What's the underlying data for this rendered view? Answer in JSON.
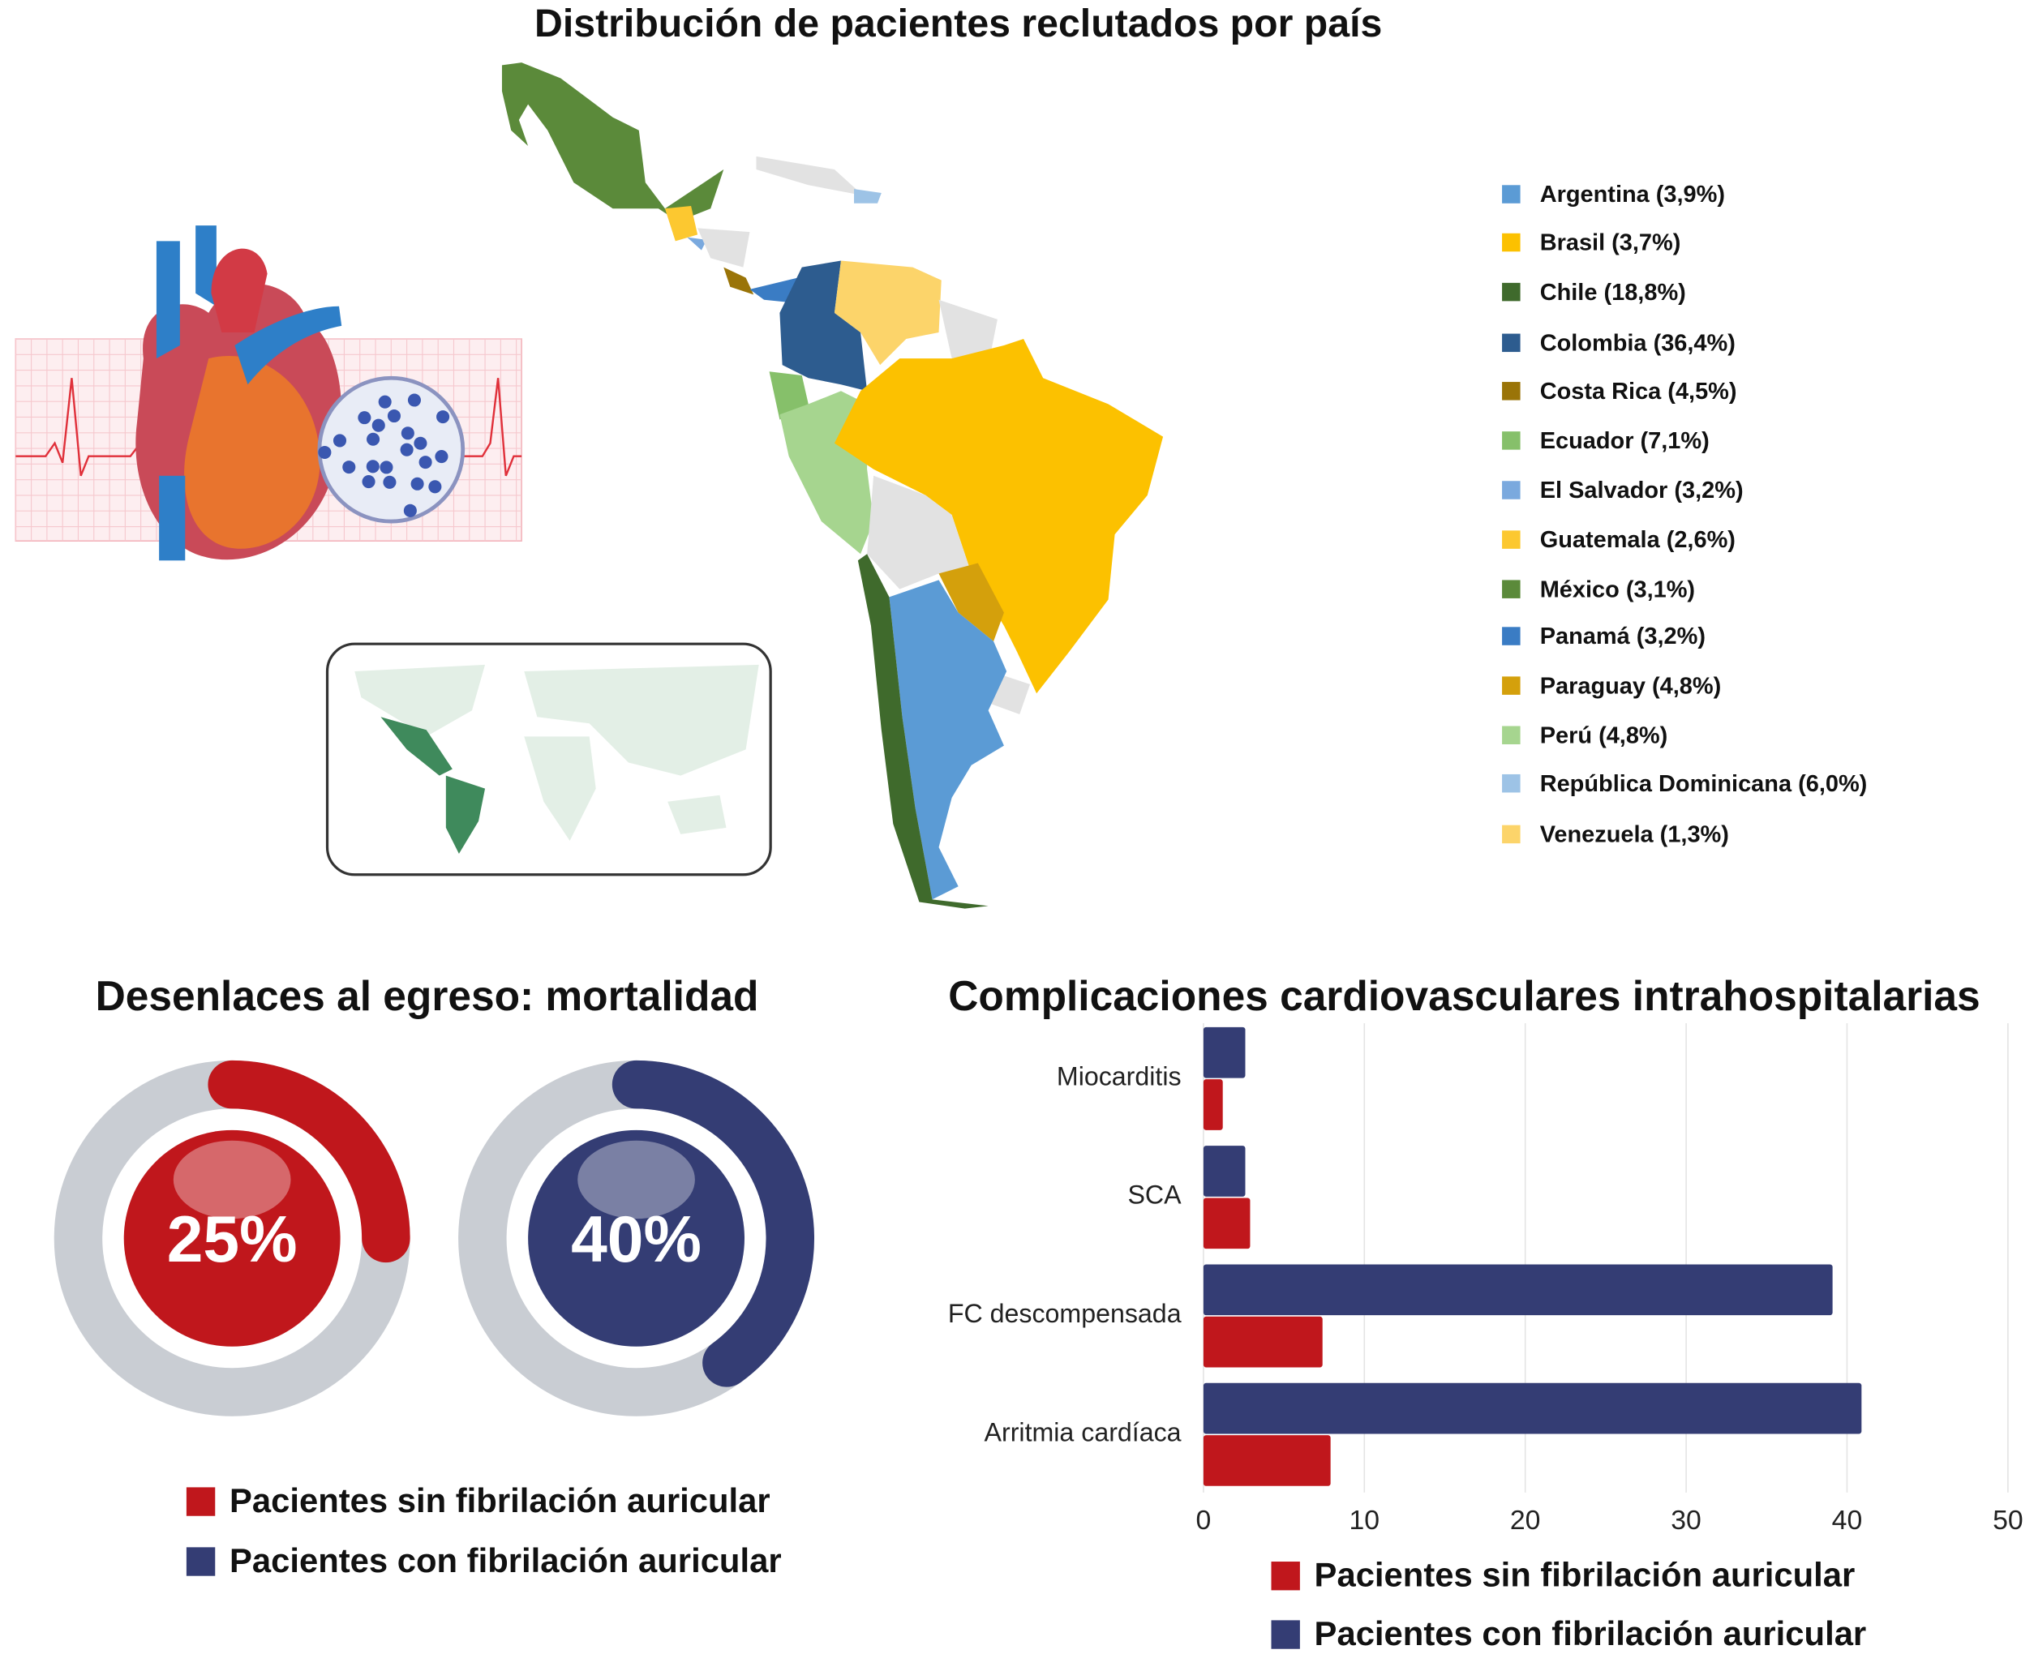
{
  "map": {
    "title": "Distribución de pacientes reclutados por país",
    "legend": [
      {
        "label": "Argentina (3,9%)",
        "color": "#5b9bd5"
      },
      {
        "label": "Brasil (3,7%)",
        "color": "#fcc100"
      },
      {
        "label": "Chile (18,8%)",
        "color": "#3f6a2c"
      },
      {
        "label": "Colombia (36,4%)",
        "color": "#2d5c8f"
      },
      {
        "label": "Costa Rica (4,5%)",
        "color": "#9a7408"
      },
      {
        "label": "Ecuador (7,1%)",
        "color": "#86c06a"
      },
      {
        "label": "El Salvador (3,2%)",
        "color": "#7aa9de"
      },
      {
        "label": "Guatemala (2,6%)",
        "color": "#fcc830"
      },
      {
        "label": "México (3,1%)",
        "color": "#5b8a3a"
      },
      {
        "label": "Panamá (3,2%)",
        "color": "#3a7cc4"
      },
      {
        "label": "Paraguay (4,8%)",
        "color": "#d4a00c"
      },
      {
        "label": "Perú (4,8%)",
        "color": "#a6d58f"
      },
      {
        "label": "República Dominicana (6,0%)",
        "color": "#9dc3e6"
      },
      {
        "label": "Venezuela (1,3%)",
        "color": "#fcd46a"
      }
    ]
  },
  "mortality": {
    "title": "Desenlaces al egreso: mortalidad",
    "donuts": [
      {
        "label": "25%",
        "value": 25,
        "color": "#c0171c"
      },
      {
        "label": "40%",
        "value": 40,
        "color": "#343d74"
      }
    ],
    "legend": [
      {
        "label": "Pacientes sin fibrilación auricular",
        "color": "#c0171c"
      },
      {
        "label": "Pacientes con fibrilación auricular",
        "color": "#343d74"
      }
    ]
  },
  "chart_data": {
    "type": "bar",
    "orientation": "horizontal",
    "title": "Complicaciones cardiovasculares intrahospitalarias",
    "categories": [
      "Miocarditis",
      "SCA",
      "FC descompensada",
      "Arritmia cardíaca"
    ],
    "series": [
      {
        "name": "Pacientes con fibrilación auricular",
        "color": "#343d74",
        "values": [
          2.6,
          2.6,
          39.1,
          40.9
        ]
      },
      {
        "name": "Pacientes sin fibrilación auricular",
        "color": "#c0171c",
        "values": [
          1.2,
          2.9,
          7.4,
          7.9
        ]
      }
    ],
    "xlim": [
      0,
      50
    ],
    "xticks": [
      "0",
      "10",
      "20",
      "30",
      "40",
      "50"
    ],
    "grid": true,
    "legend_position": "bottom",
    "legend": [
      {
        "label": "Pacientes sin fibrilación auricular",
        "color": "#c0171c"
      },
      {
        "label": "Pacientes con fibrilación auricular",
        "color": "#343d74"
      }
    ]
  }
}
